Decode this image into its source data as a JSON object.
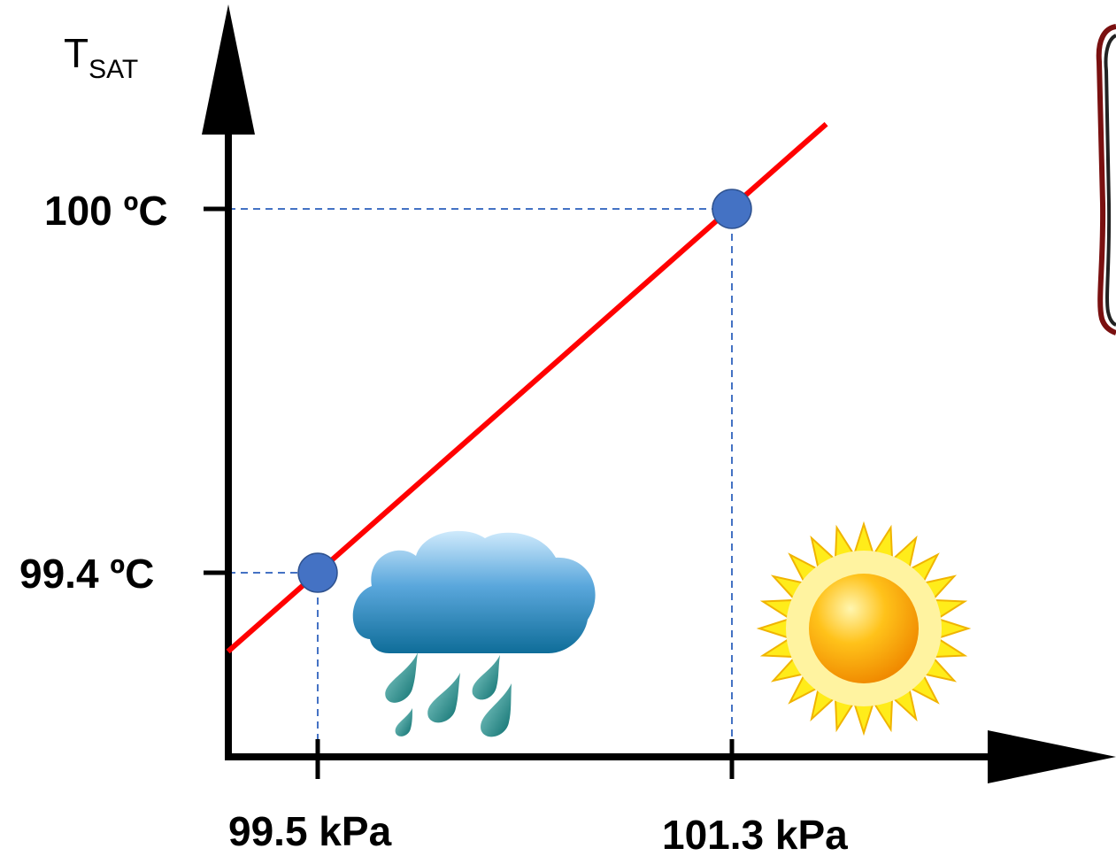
{
  "chart_data": {
    "type": "line",
    "ylabel_main": "T",
    "ylabel_sub": "SAT",
    "x_ticks": [
      {
        "value": 99.5,
        "label": "99.5 kPa"
      },
      {
        "value": 101.3,
        "label": "101.3 kPa"
      }
    ],
    "y_ticks": [
      {
        "value": 99.4,
        "label": "99.4 ºC"
      },
      {
        "value": 100,
        "label": "100 ºC"
      }
    ],
    "series": [
      {
        "color": "#ff0000",
        "x": [
          99.11,
          101.71
        ],
        "y": [
          99.27,
          100.14
        ]
      }
    ],
    "points": [
      {
        "x": 99.5,
        "y": 99.4,
        "icon": "rain-cloud-icon"
      },
      {
        "x": 101.3,
        "y": 100.0,
        "icon": "sun-icon"
      }
    ],
    "point_color": "#4472c4",
    "guide_color": "#4472c4",
    "grid": false
  }
}
